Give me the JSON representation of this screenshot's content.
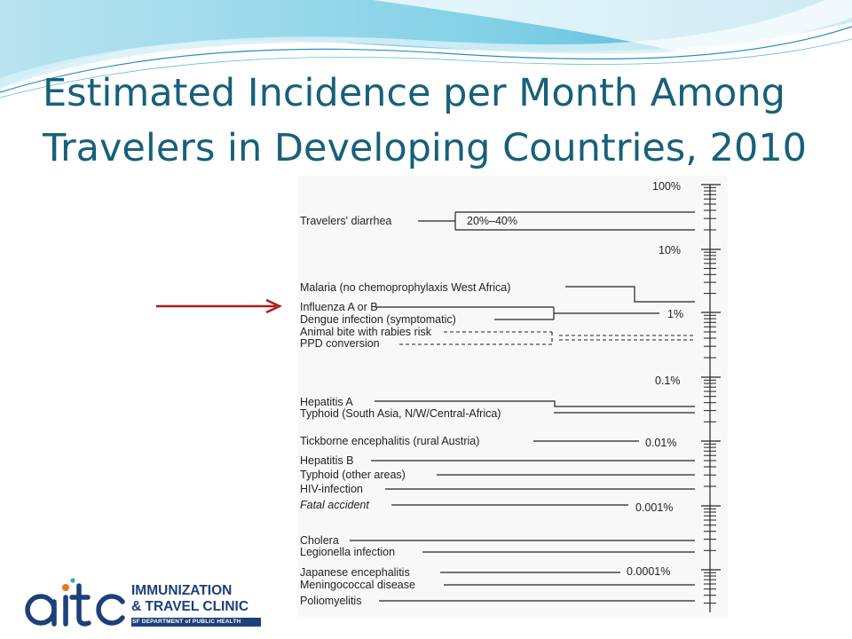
{
  "slide": {
    "title_line1": "Estimated Incidence per Month Among",
    "title_line2": "Travelers in Developing Countries, 2010",
    "accent_color": "#17607a",
    "arrow_color": "#b01a1a"
  },
  "figure": {
    "scale_labels": [
      "100%",
      "10%",
      "1%",
      "0.1%",
      "0.01%",
      "0.001%",
      "0.0001%"
    ],
    "range_label": "20%–40%",
    "items": [
      {
        "label": "Travelers' diarrhea",
        "incidence": "20%–40%"
      },
      {
        "label": "Malaria (no chemoprophylaxis West Africa)"
      },
      {
        "label": "Influenza A or B"
      },
      {
        "label": "Dengue infection (symptomatic)"
      },
      {
        "label": "Animal bite with rabies risk"
      },
      {
        "label": "PPD conversion"
      },
      {
        "label": "Hepatitis A"
      },
      {
        "label": "Typhoid (South Asia, N/W/Central-Africa)"
      },
      {
        "label": "Tickborne encephalitis (rural Austria)"
      },
      {
        "label": "Hepatitis B"
      },
      {
        "label": "Typhoid (other areas)"
      },
      {
        "label": "HIV-infection"
      },
      {
        "label": "Fatal accident"
      },
      {
        "label": "Cholera"
      },
      {
        "label": "Legionella infection"
      },
      {
        "label": "Japanese encephalitis"
      },
      {
        "label": "Meningococcal disease"
      },
      {
        "label": "Poliomyelitis"
      }
    ]
  },
  "logo": {
    "mark": "aitc",
    "line1": "IMMUNIZATION",
    "line2": "& TRAVEL CLINIC",
    "sub": "SF DEPARTMENT of PUBLIC HEALTH"
  }
}
